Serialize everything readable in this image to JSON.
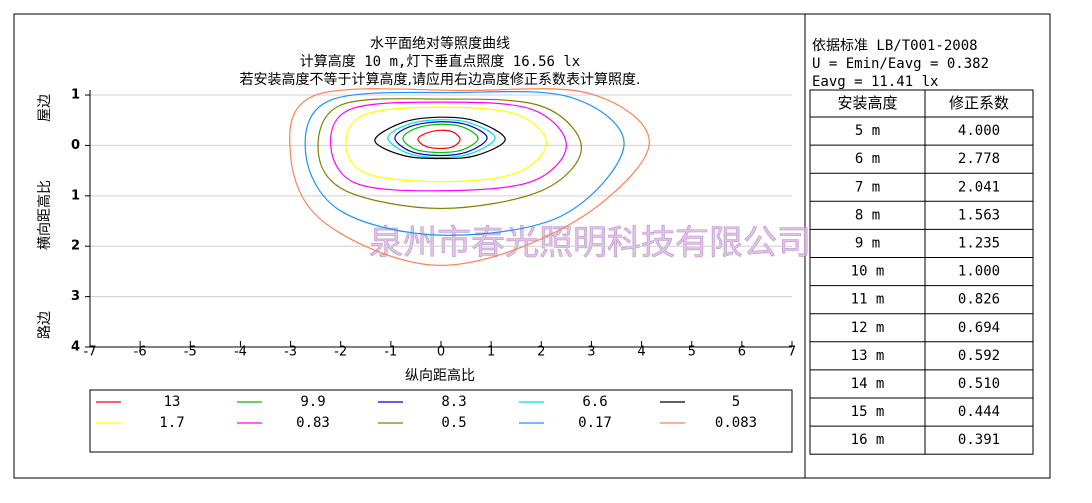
{
  "chart_data": {
    "type": "contour",
    "title": "水平面绝对等照度曲线",
    "subtitle": "计算高度 10 m,灯下垂直点照度  16.56 lx",
    "note": "若安装高度不等于计算高度,请应用右边高度修正系数表计算照度.",
    "x_label": "纵向距高比",
    "y_label": "横向距高比",
    "y_label_top": "屋边",
    "y_label_bottom": "路边",
    "watermark": "泉州市春光照明科技有限公司",
    "xlim": [
      -7,
      7
    ],
    "xticks": [
      -7,
      -6,
      -5,
      -4,
      -3,
      -2,
      -1,
      0,
      1,
      2,
      3,
      4,
      5,
      6,
      7
    ],
    "ylim": [
      -1.1,
      4
    ],
    "yticks": [
      {
        "value": -1,
        "label": "1"
      },
      0,
      1,
      2,
      3,
      4
    ],
    "grid": true,
    "legend": "bottom",
    "series": [
      {
        "level": 13,
        "color": "#ff0000",
        "x": [
          0.38,
          0.25,
          0,
          -0.3,
          -0.46,
          -0.3,
          0,
          0.25
        ],
        "y": [
          -0.12,
          -0.26,
          -0.3,
          -0.24,
          -0.12,
          0.02,
          0.06,
          0.02
        ]
      },
      {
        "level": 9.9,
        "color": "#00c000",
        "x": [
          0.74,
          0.45,
          0,
          -0.5,
          -0.76,
          -0.5,
          0,
          0.45
        ],
        "y": [
          -0.14,
          -0.36,
          -0.42,
          -0.34,
          -0.14,
          0.08,
          0.14,
          0.08
        ]
      },
      {
        "level": 8.3,
        "color": "#0000c0",
        "x": [
          0.92,
          0.55,
          0,
          -0.6,
          -0.92,
          -0.6,
          0,
          0.55
        ],
        "y": [
          -0.15,
          -0.4,
          -0.47,
          -0.38,
          -0.15,
          0.12,
          0.2,
          0.12
        ]
      },
      {
        "level": 6.6,
        "color": "#00e0e0",
        "x": [
          1.08,
          0.6,
          0,
          -0.65,
          -1.06,
          -0.65,
          0,
          0.6
        ],
        "y": [
          -0.15,
          -0.44,
          -0.51,
          -0.42,
          -0.15,
          0.16,
          0.24,
          0.16
        ]
      },
      {
        "level": 5,
        "color": "#000000",
        "x": [
          1.28,
          0.7,
          0,
          -0.75,
          -1.32,
          -0.75,
          0,
          0.7
        ],
        "y": [
          -0.12,
          -0.48,
          -0.56,
          -0.46,
          -0.1,
          0.2,
          0.26,
          0.2
        ]
      },
      {
        "level": 1.7,
        "color": "#ffff00",
        "x": [
          2.1,
          1.5,
          0,
          -1.5,
          -1.9,
          -1.5,
          0,
          1.5
        ],
        "y": [
          -0.05,
          -0.62,
          -0.76,
          -0.62,
          -0.05,
          0.55,
          0.72,
          0.55
        ]
      },
      {
        "level": 0.83,
        "color": "#ff00ff",
        "x": [
          2.5,
          1.8,
          0,
          -1.8,
          -2.2,
          -1.7,
          0,
          1.8
        ],
        "y": [
          0.0,
          -0.72,
          -0.86,
          -0.72,
          0.0,
          0.75,
          0.9,
          0.72
        ]
      },
      {
        "level": 0.5,
        "color": "#808000",
        "x": [
          2.8,
          2.0,
          0,
          -2.0,
          -2.45,
          -1.9,
          0,
          2.0
        ],
        "y": [
          0.05,
          -0.78,
          -0.92,
          -0.8,
          0.1,
          0.9,
          1.25,
          0.9
        ]
      },
      {
        "level": 0.17,
        "color": "#1e90ff",
        "x": [
          3.65,
          2.6,
          0.3,
          -2.2,
          -2.7,
          -2.0,
          0,
          2.4
        ],
        "y": [
          0.0,
          -0.95,
          -1.05,
          -0.9,
          0.15,
          1.3,
          1.78,
          1.4
        ]
      },
      {
        "level": 0.083,
        "color": "#ff7f50",
        "x": [
          4.15,
          3.0,
          0.5,
          -2.5,
          -3.0,
          -2.3,
          0,
          2.6
        ],
        "y": [
          0.0,
          -1.02,
          -1.09,
          -1.0,
          0.2,
          1.55,
          2.38,
          1.55
        ]
      }
    ]
  },
  "standard": "依据标准 LB/T001-2008",
  "uniformity": "U = Emin/Eavg = 0.382",
  "average": "Eavg = 11.41 lx",
  "table": {
    "header": [
      "安装高度",
      "修正系数"
    ],
    "rows": [
      [
        "5 m",
        "4.000"
      ],
      [
        "6 m",
        "2.778"
      ],
      [
        "7 m",
        "2.041"
      ],
      [
        "8 m",
        "1.563"
      ],
      [
        "9 m",
        "1.235"
      ],
      [
        "10 m",
        "1.000"
      ],
      [
        "11 m",
        "0.826"
      ],
      [
        "12 m",
        "0.694"
      ],
      [
        "13 m",
        "0.592"
      ],
      [
        "14 m",
        "0.510"
      ],
      [
        "15 m",
        "0.444"
      ],
      [
        "16 m",
        "0.391"
      ]
    ]
  }
}
